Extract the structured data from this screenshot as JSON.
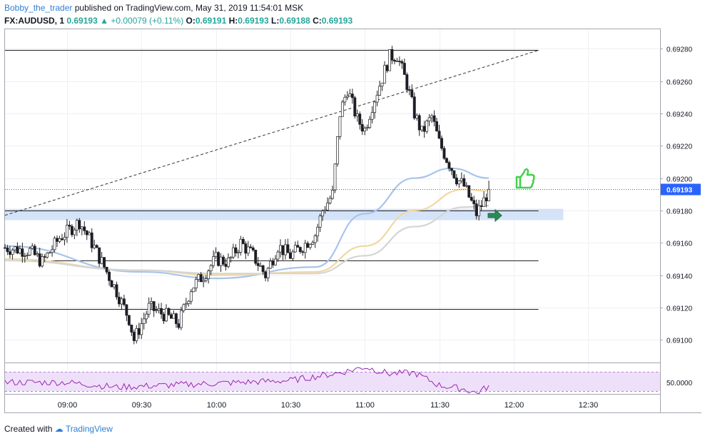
{
  "header": {
    "author": "Bobby_the_trader",
    "published_text": "published on TradingView.com, May 31, 2019 11:54:01 MSK",
    "symbol": "FX:AUDUSD, 1",
    "last": "0.69193",
    "change": "+0.00079 (+0.11%)",
    "o_label": "O:",
    "o_value": "0.69191",
    "h_label": "H:",
    "h_value": "0.69193",
    "l_label": "L:",
    "l_value": "0.69188",
    "c_label": "C:",
    "c_value": "0.69193"
  },
  "footer": {
    "created_text": "Created with",
    "brand": "TradingView"
  },
  "chart_data": [
    {
      "type": "candlestick",
      "symbol": "FX:AUDUSD",
      "interval": "1 minute",
      "x_ticks": [
        "09:00",
        "09:30",
        "10:00",
        "10:30",
        "11:00",
        "11:30",
        "12:00",
        "12:30"
      ],
      "y_ticks": [
        "0.69100",
        "0.69120",
        "0.69140",
        "0.69160",
        "0.69180",
        "0.69200",
        "0.69220",
        "0.69240",
        "0.69260",
        "0.69280"
      ],
      "ylim": [
        0.69086,
        0.69292
      ],
      "last_price_label": "0.69193",
      "anchor_closes": [
        [
          "08:35",
          0.69157
        ],
        [
          "08:45",
          0.69155
        ],
        [
          "08:50",
          0.69148
        ],
        [
          "08:57",
          0.69163
        ],
        [
          "09:05",
          0.69173
        ],
        [
          "09:10",
          0.6916
        ],
        [
          "09:15",
          0.69145
        ],
        [
          "09:20",
          0.6913
        ],
        [
          "09:25",
          0.69113
        ],
        [
          "09:27",
          0.691
        ],
        [
          "09:33",
          0.6912
        ],
        [
          "09:40",
          0.69115
        ],
        [
          "09:45",
          0.6911
        ],
        [
          "09:50",
          0.69132
        ],
        [
          "09:55",
          0.6914
        ],
        [
          "10:00",
          0.6915
        ],
        [
          "10:05",
          0.69148
        ],
        [
          "10:10",
          0.6916
        ],
        [
          "10:15",
          0.69152
        ],
        [
          "10:20",
          0.6914
        ],
        [
          "10:25",
          0.69158
        ],
        [
          "10:30",
          0.69152
        ],
        [
          "10:35",
          0.69158
        ],
        [
          "10:40",
          0.69165
        ],
        [
          "10:43",
          0.6918
        ],
        [
          "10:47",
          0.6919
        ],
        [
          "10:50",
          0.6924
        ],
        [
          "10:53",
          0.69255
        ],
        [
          "10:57",
          0.69236
        ],
        [
          "11:00",
          0.6923
        ],
        [
          "11:03",
          0.69245
        ],
        [
          "11:07",
          0.69262
        ],
        [
          "11:10",
          0.69275
        ],
        [
          "11:13",
          0.69276
        ],
        [
          "11:17",
          0.69258
        ],
        [
          "11:20",
          0.6924
        ],
        [
          "11:23",
          0.69228
        ],
        [
          "11:27",
          0.69238
        ],
        [
          "11:30",
          0.69222
        ],
        [
          "11:33",
          0.69212
        ],
        [
          "11:37",
          0.692
        ],
        [
          "11:40",
          0.69195
        ],
        [
          "11:43",
          0.69185
        ],
        [
          "11:45",
          0.69178
        ],
        [
          "11:48",
          0.69186
        ],
        [
          "11:50",
          0.69193
        ]
      ],
      "horizontal_levels": [
        0.69279,
        0.6918,
        0.69149,
        0.69119
      ],
      "support_zone": [
        0.69174,
        0.69181
      ],
      "trendline": {
        "from": [
          "08:35",
          0.69177
        ],
        "to": [
          "12:10",
          0.69279
        ],
        "style": "dashed"
      },
      "moving_averages": [
        {
          "color": "#a9c4ea",
          "values_at": [
            [
              "08:35",
              0.69158
            ],
            [
              "09:30",
              0.69142
            ],
            [
              "10:00",
              0.69138
            ],
            [
              "10:40",
              0.69145
            ],
            [
              "11:00",
              0.69178
            ],
            [
              "11:20",
              0.692
            ],
            [
              "11:35",
              0.69206
            ],
            [
              "11:50",
              0.692
            ]
          ]
        },
        {
          "color": "#f0d9a0",
          "values_at": [
            [
              "08:35",
              0.6915
            ],
            [
              "09:30",
              0.69143
            ],
            [
              "10:00",
              0.6914
            ],
            [
              "10:40",
              0.69142
            ],
            [
              "11:00",
              0.69158
            ],
            [
              "11:20",
              0.6918
            ],
            [
              "11:40",
              0.69193
            ],
            [
              "11:50",
              0.69192
            ]
          ]
        },
        {
          "color": "#d5d5d5",
          "values_at": [
            [
              "08:35",
              0.69149
            ],
            [
              "09:30",
              0.69143
            ],
            [
              "10:00",
              0.69141
            ],
            [
              "10:40",
              0.69141
            ],
            [
              "11:00",
              0.69152
            ],
            [
              "11:20",
              0.6917
            ],
            [
              "11:40",
              0.69182
            ],
            [
              "11:50",
              0.69183
            ]
          ]
        }
      ],
      "annotations": [
        "green-arrow",
        "thumbs-up"
      ]
    },
    {
      "type": "line",
      "name": "oscillator",
      "y_ticks": [
        "50.0000"
      ],
      "color": "#9c27b0"
    }
  ]
}
